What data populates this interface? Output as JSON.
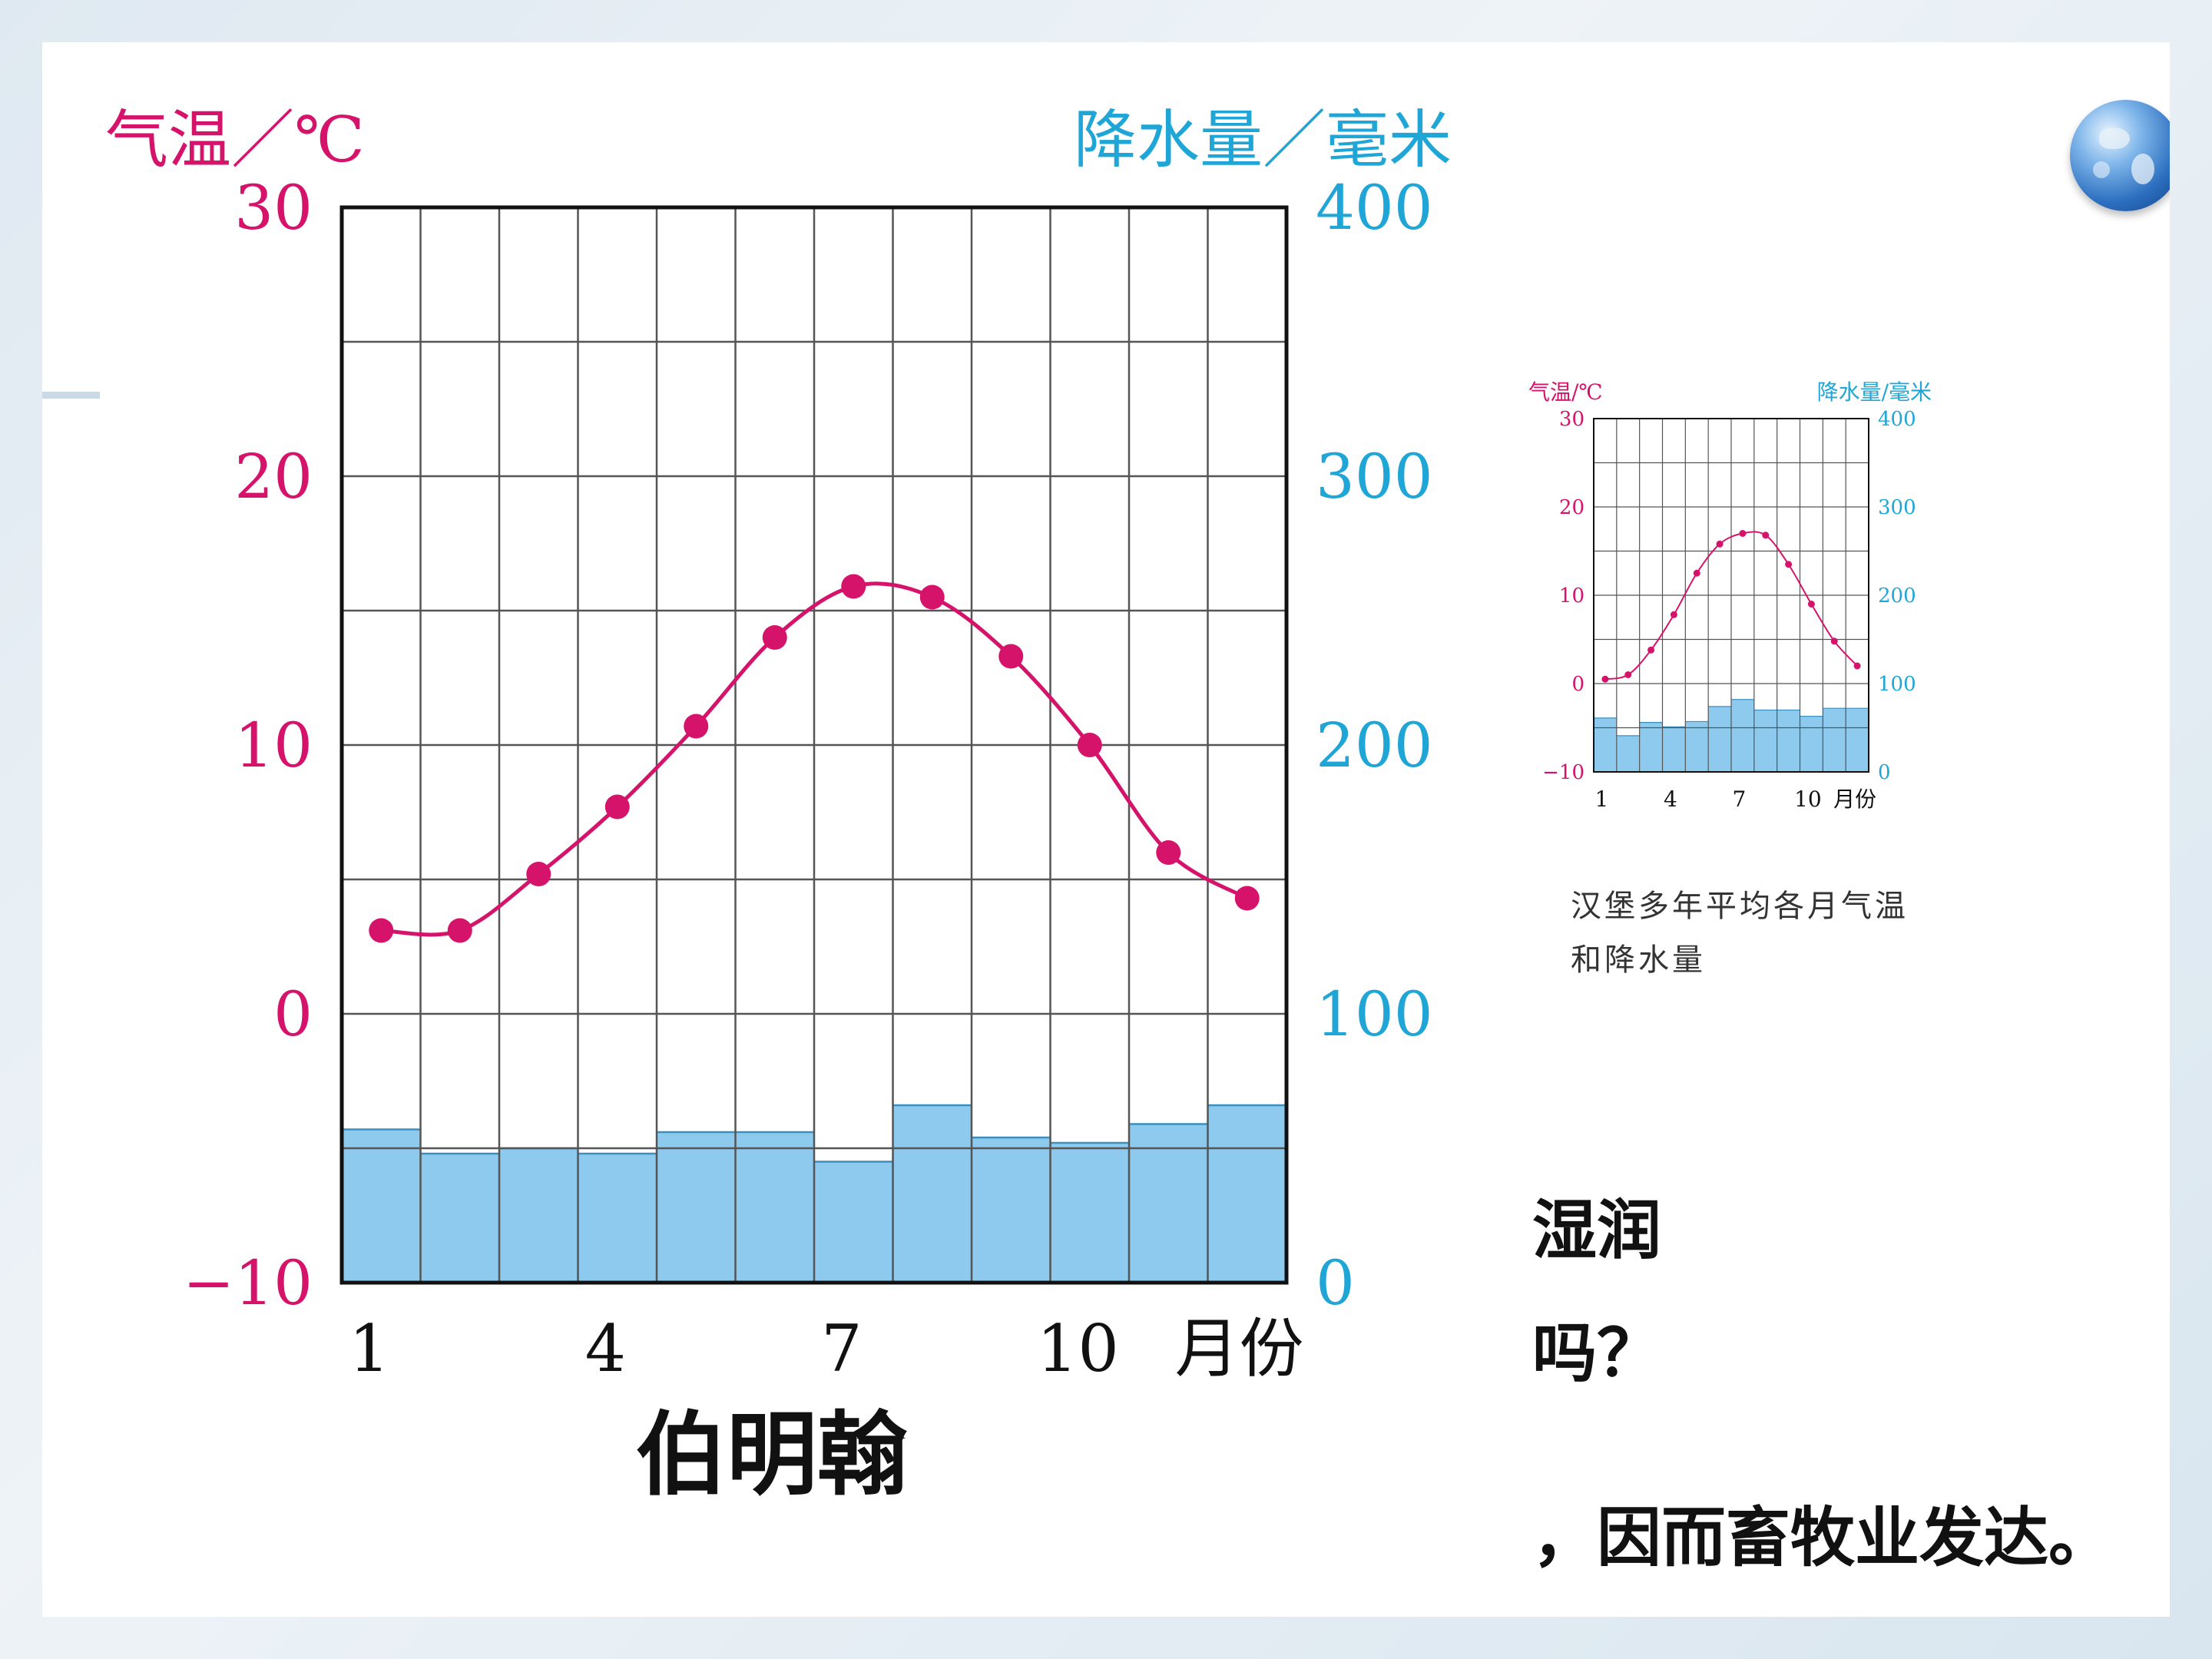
{
  "slide_text": {
    "line1": "湿润",
    "line2": "吗？",
    "line3": "，因而畜牧业发达。"
  },
  "colors": {
    "temperature": "#d6136b",
    "precipitation_label": "#1fa6d6",
    "precipitation_fill": "#8dcaee"
  },
  "chart_data": [
    {
      "type": "line+bar",
      "title": "伯明翰",
      "left_axis_label": "气温／℃",
      "right_axis_label": "降水量／毫米",
      "xlabel": "月份",
      "x_tick_labels": [
        "1",
        "4",
        "7",
        "10"
      ],
      "months": [
        1,
        2,
        3,
        4,
        5,
        6,
        7,
        8,
        9,
        10,
        11,
        12
      ],
      "temperature": [
        3.1,
        3.1,
        5.2,
        7.7,
        10.7,
        14.0,
        15.9,
        15.5,
        13.3,
        10.0,
        6.0,
        4.3
      ],
      "precipitation": [
        57,
        48,
        50,
        48,
        56,
        56,
        45,
        66,
        54,
        52,
        59,
        66
      ],
      "temp_ylim": [
        -10,
        30
      ],
      "temp_ticks": [
        "30",
        "20",
        "10",
        "0",
        "−10"
      ],
      "precip_ylim": [
        0,
        400
      ],
      "precip_ticks": [
        "400",
        "300",
        "200",
        "100",
        "0"
      ],
      "grid": true
    },
    {
      "type": "line+bar",
      "title": "汉堡多年平均各月气温和降水量",
      "caption_line1": "汉堡多年平均各月气温",
      "caption_line2": "和降水量",
      "left_axis_label": "气温/℃",
      "right_axis_label": "降水量/毫米",
      "xlabel": "月份",
      "x_tick_labels": [
        "1",
        "4",
        "7",
        "10"
      ],
      "months": [
        1,
        2,
        3,
        4,
        5,
        6,
        7,
        8,
        9,
        10,
        11,
        12
      ],
      "temperature": [
        0.5,
        1.0,
        3.8,
        7.8,
        12.5,
        15.8,
        17.0,
        16.8,
        13.5,
        9.0,
        4.8,
        2.0
      ],
      "precipitation": [
        61,
        41,
        56,
        51,
        57,
        74,
        82,
        70,
        70,
        63,
        72,
        72
      ],
      "temp_ylim": [
        -10,
        30
      ],
      "temp_ticks": [
        "30",
        "20",
        "10",
        "0",
        "−10"
      ],
      "precip_ylim": [
        0,
        400
      ],
      "precip_ticks": [
        "400",
        "300",
        "200",
        "100",
        "0"
      ],
      "grid": true
    }
  ]
}
